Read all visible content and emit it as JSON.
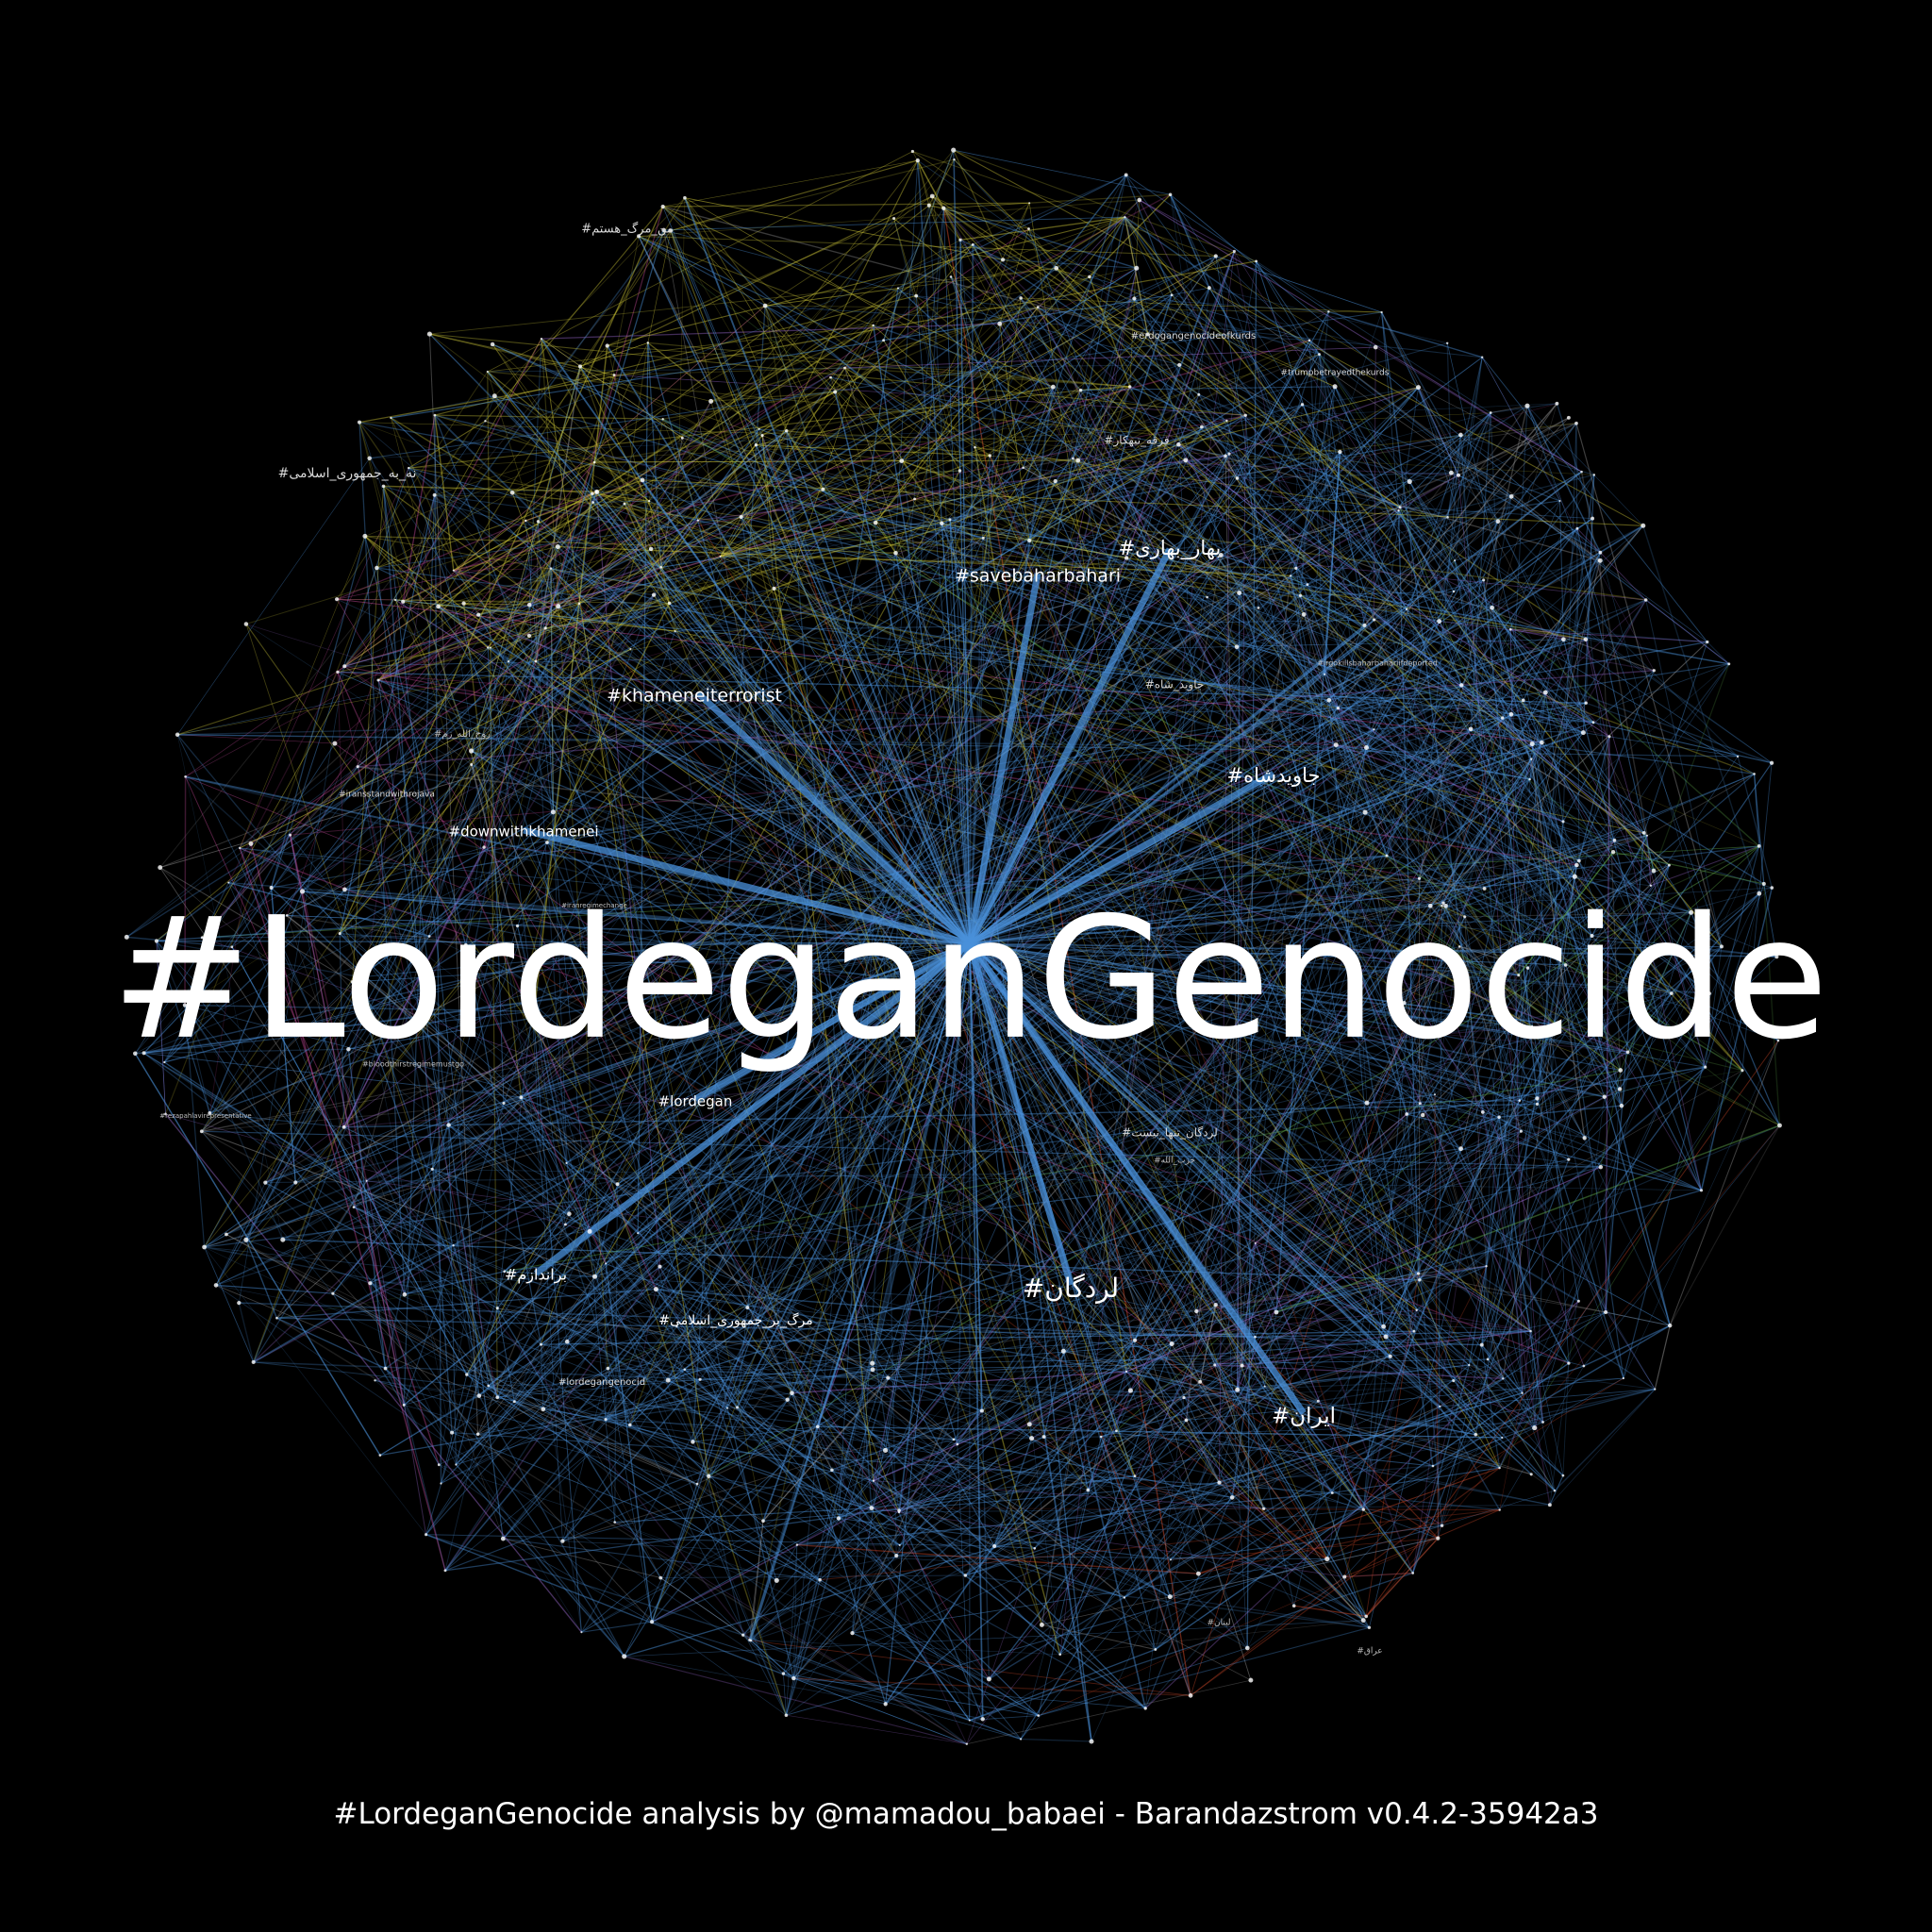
{
  "title": "#LordeganGenocide",
  "footer": "#LordeganGenocide analysis by @mamadou_babaei - Barandazstrom v0.4.2-35942a3",
  "colors": {
    "background": "#000000",
    "edge_blue": "#4a90d9",
    "edge_yellow": "#c9c236",
    "edge_pink": "#c44a9a",
    "edge_red": "#d24a2a",
    "edge_green": "#5fa84a",
    "edge_purple": "#9a6ad0",
    "edge_gray": "#9a9a9a",
    "label": "#ffffff"
  },
  "hub": "#LordeganGenocide",
  "labels": {
    "savebaharbahari": "#savebaharbahari",
    "bahar_bahari": "#بهار_بهاری",
    "khameneiterrorist": "#khameneiterrorist",
    "javidshah": "#جاویدشاه",
    "downwithkhamenei": "#downwithkhamenei",
    "lordegan_fa": "#لردگان",
    "iran_fa": "#ایران",
    "lordegan": "#lordegan",
    "baraandazam": "#براندازم",
    "marg_jomhouri": "#مرگ_بر_جمهوری_اسلامی",
    "lordegan_tanha": "#لردگان_تنها_نیست",
    "na_jomhouri": "#نه_به_جمهوری_اسلامی",
    "erdogangenocideofkurds": "#erdogangenocideofkurds",
    "trumpbetrayedthekurds": "#trumpbetrayedthekurds",
    "ferghe_tabahkar": "#فرقه_تبهکار",
    "javid_shah": "#جاوید_شاه",
    "iransstandwithrojava": "#iransstandwithrojava",
    "lordegangenocid": "#lordegangenocid",
    "bloodthirstregimemustgo": "#bloodthirstregimemustgo",
    "rezapahlavirepresentative": "#rezapahlavirepresentative",
    "irgokillbaharbahari": "#irgokillsbaharbahariifdeported",
    "man_marg": "#من_مرگ_هستم",
    "hezbollah": "#حزب_الله",
    "rouhollah": "#روح_الله_زم",
    "lebanon": "#لبنان",
    "iraq": "#عراق",
    "iranregimechange": "#iranregimechange"
  }
}
